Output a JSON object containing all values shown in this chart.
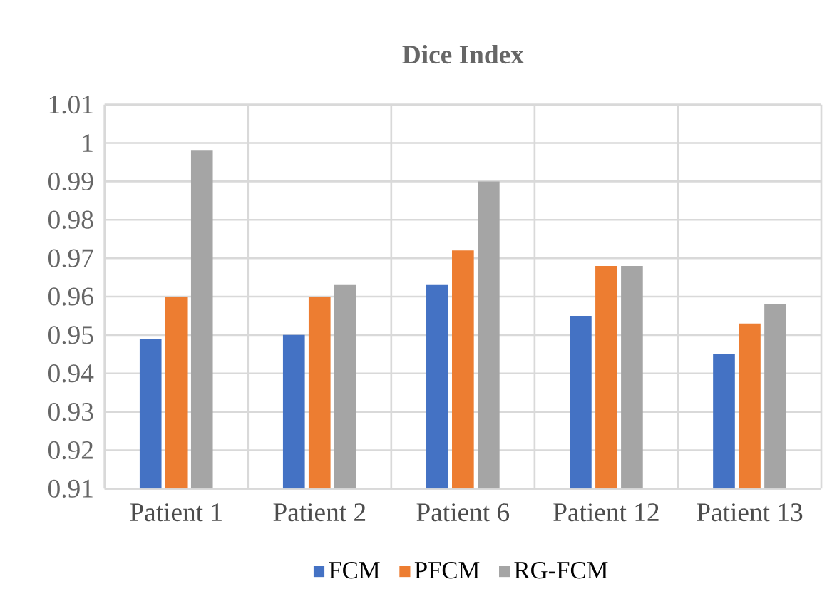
{
  "chart_data": {
    "type": "bar",
    "title": "Dice Index",
    "categories": [
      "Patient 1",
      "Patient 2",
      "Patient 6",
      "Patient 12",
      "Patient 13"
    ],
    "series": [
      {
        "name": "FCM",
        "color": "#4472c4",
        "values": [
          0.949,
          0.95,
          0.963,
          0.955,
          0.945
        ]
      },
      {
        "name": "PFCM",
        "color": "#ed7d31",
        "values": [
          0.96,
          0.96,
          0.972,
          0.968,
          0.953
        ]
      },
      {
        "name": "RG-FCM",
        "color": "#a5a5a5",
        "values": [
          0.998,
          0.963,
          0.99,
          0.968,
          0.958
        ]
      }
    ],
    "ylim": [
      0.91,
      1.01
    ],
    "yticks": [
      0.91,
      0.92,
      0.93,
      0.94,
      0.95,
      0.96,
      0.97,
      0.98,
      0.99,
      1,
      1.01
    ],
    "grid": true,
    "legend": "bottom"
  }
}
